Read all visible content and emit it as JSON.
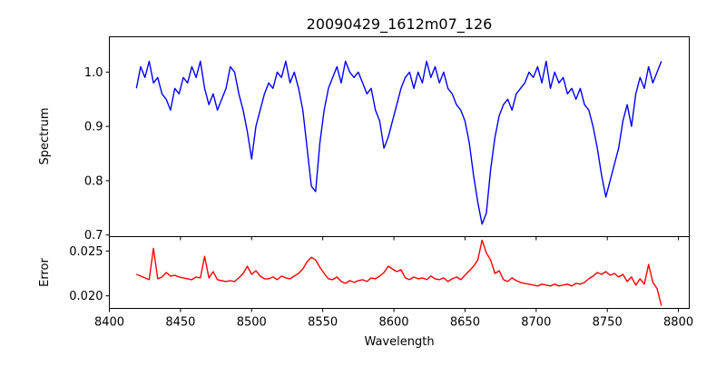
{
  "chart_data": [
    {
      "type": "line",
      "title": "20090429_1612m07_126",
      "xlabel": "",
      "ylabel": "Spectrum",
      "xlim": [
        8400,
        8807.6
      ],
      "ylim": [
        0.697,
        1.065
      ],
      "xticks": [
        8400,
        8450,
        8500,
        8550,
        8600,
        8650,
        8700,
        8750,
        8800
      ],
      "xticks_visible_labels": false,
      "yticks": [
        0.7,
        0.8,
        0.9,
        1.0
      ],
      "ytick_labels": [
        "0.7",
        "0.8",
        "0.9",
        "1.0"
      ],
      "grid": false,
      "color": "#0000ff",
      "x_start": 8419,
      "x_step": 3,
      "values": [
        0.97,
        1.01,
        0.99,
        1.02,
        0.98,
        0.99,
        0.96,
        0.95,
        0.93,
        0.97,
        0.96,
        0.99,
        0.98,
        1.01,
        0.99,
        1.02,
        0.97,
        0.94,
        0.96,
        0.93,
        0.95,
        0.97,
        1.01,
        1.0,
        0.96,
        0.93,
        0.89,
        0.84,
        0.9,
        0.93,
        0.96,
        0.98,
        0.97,
        1.0,
        0.99,
        1.02,
        0.98,
        1.0,
        0.97,
        0.93,
        0.86,
        0.79,
        0.78,
        0.87,
        0.93,
        0.97,
        0.99,
        1.01,
        0.98,
        1.02,
        1.0,
        0.99,
        1.0,
        0.98,
        0.96,
        0.97,
        0.93,
        0.91,
        0.86,
        0.88,
        0.91,
        0.94,
        0.97,
        0.99,
        1.0,
        0.97,
        1.0,
        0.98,
        1.02,
        0.99,
        1.01,
        0.98,
        1.0,
        0.97,
        0.96,
        0.94,
        0.93,
        0.91,
        0.87,
        0.81,
        0.76,
        0.72,
        0.74,
        0.82,
        0.88,
        0.92,
        0.94,
        0.95,
        0.93,
        0.96,
        0.97,
        0.98,
        1.0,
        0.99,
        1.01,
        0.98,
        1.02,
        0.97,
        1.0,
        0.98,
        0.99,
        0.96,
        0.97,
        0.95,
        0.97,
        0.94,
        0.93,
        0.9,
        0.86,
        0.81,
        0.77,
        0.8,
        0.83,
        0.86,
        0.91,
        0.94,
        0.9,
        0.96,
        0.99,
        0.97,
        1.01,
        0.98,
        1.0,
        1.02
      ]
    },
    {
      "type": "line",
      "xlabel": "Wavelength",
      "ylabel": "Error",
      "xlim": [
        8400,
        8807.6
      ],
      "ylim": [
        0.0186,
        0.0266
      ],
      "xticks": [
        8400,
        8450,
        8500,
        8550,
        8600,
        8650,
        8700,
        8750,
        8800
      ],
      "xtick_labels": [
        "8400",
        "8450",
        "8500",
        "8550",
        "8600",
        "8650",
        "8700",
        "8750",
        "8800"
      ],
      "yticks": [
        0.02,
        0.025
      ],
      "ytick_labels": [
        "0.020",
        "0.025"
      ],
      "grid": false,
      "color": "#ff0000",
      "x_start": 8419,
      "x_step": 3,
      "values": [
        0.0224,
        0.0222,
        0.022,
        0.0218,
        0.0253,
        0.0219,
        0.0221,
        0.0226,
        0.0222,
        0.0223,
        0.0221,
        0.022,
        0.0219,
        0.0218,
        0.0221,
        0.022,
        0.0244,
        0.022,
        0.0227,
        0.0218,
        0.0217,
        0.0216,
        0.0217,
        0.0216,
        0.022,
        0.0225,
        0.0233,
        0.0224,
        0.0228,
        0.0222,
        0.0219,
        0.0219,
        0.0221,
        0.0218,
        0.0222,
        0.022,
        0.0219,
        0.0222,
        0.0225,
        0.023,
        0.0238,
        0.0243,
        0.024,
        0.0232,
        0.0225,
        0.0219,
        0.0218,
        0.0221,
        0.0216,
        0.0214,
        0.0217,
        0.0215,
        0.0217,
        0.0218,
        0.0216,
        0.022,
        0.0219,
        0.0222,
        0.0226,
        0.0233,
        0.023,
        0.0227,
        0.0229,
        0.022,
        0.0218,
        0.0221,
        0.0219,
        0.022,
        0.0218,
        0.0222,
        0.0219,
        0.0218,
        0.022,
        0.0216,
        0.0219,
        0.0221,
        0.0218,
        0.0223,
        0.0228,
        0.0233,
        0.024,
        0.0262,
        0.0248,
        0.024,
        0.0225,
        0.0228,
        0.0218,
        0.0216,
        0.022,
        0.0217,
        0.0215,
        0.0214,
        0.0213,
        0.0212,
        0.0211,
        0.0213,
        0.0212,
        0.0211,
        0.0213,
        0.0211,
        0.0212,
        0.0213,
        0.0211,
        0.0214,
        0.0213,
        0.0215,
        0.0219,
        0.0222,
        0.0226,
        0.0224,
        0.0227,
        0.0223,
        0.0225,
        0.0221,
        0.0224,
        0.0216,
        0.0221,
        0.0212,
        0.0219,
        0.0213,
        0.0235,
        0.0215,
        0.0208,
        0.0189
      ]
    }
  ]
}
